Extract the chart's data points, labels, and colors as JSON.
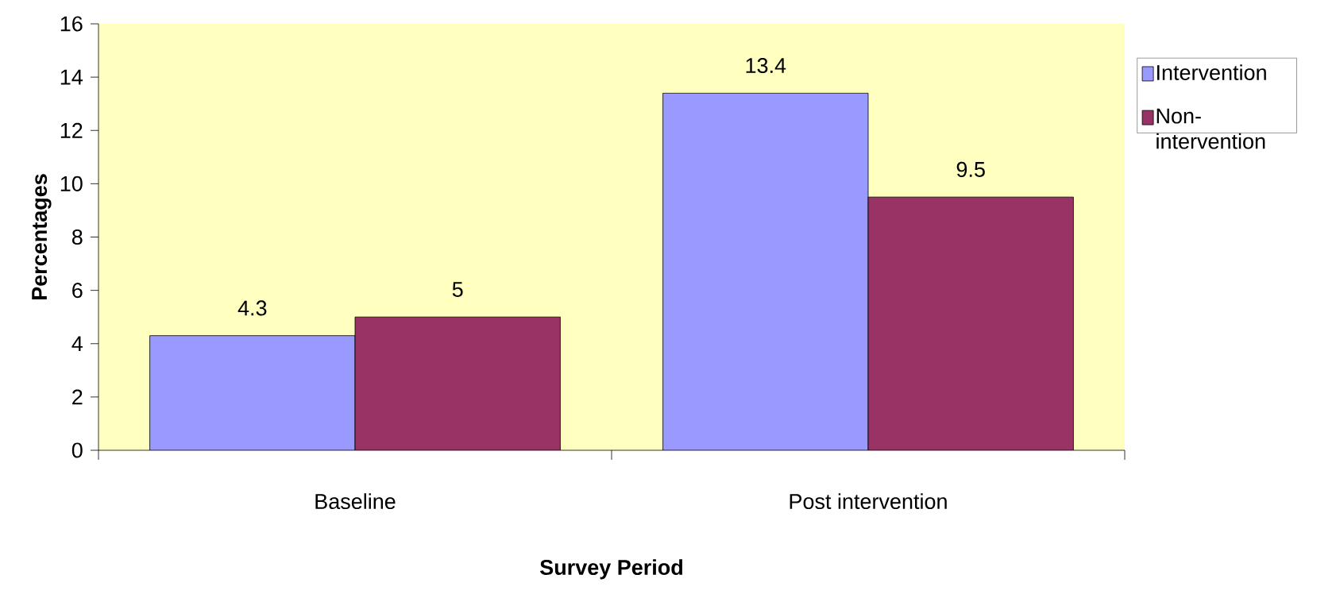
{
  "chart_data": {
    "type": "bar",
    "xlabel": "Survey Period",
    "ylabel": "Percentages",
    "categories": [
      "Baseline",
      "Post intervention"
    ],
    "series": [
      {
        "name": "Intervention",
        "color": "#9999ff",
        "values": [
          4.3,
          13.4
        ]
      },
      {
        "name": "Non-intervention",
        "color": "#993366",
        "values": [
          5,
          9.5
        ]
      }
    ],
    "ylim": [
      0,
      16
    ],
    "yticks": [
      0,
      2,
      4,
      6,
      8,
      10,
      12,
      14,
      16
    ],
    "grid": false,
    "legend": "right",
    "data_labels": true
  }
}
